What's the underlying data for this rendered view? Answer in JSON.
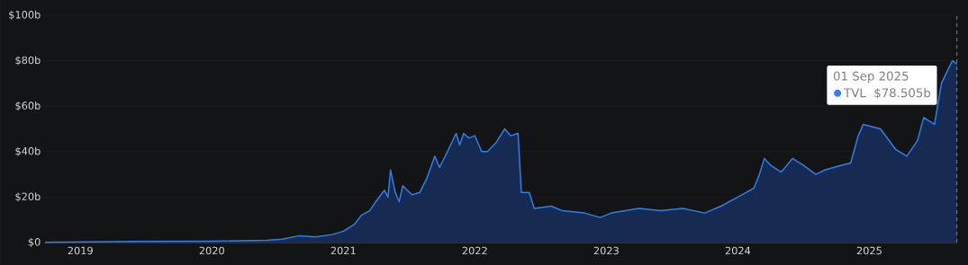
{
  "chart_data": {
    "type": "area",
    "xlim": [
      "2018-09-25",
      "2025-09-01"
    ],
    "ylim": [
      0,
      100
    ],
    "xticks": [
      {
        "value": "2019-01-01",
        "label": "2019"
      },
      {
        "value": "2020-01-01",
        "label": "2020"
      },
      {
        "value": "2021-01-01",
        "label": "2021"
      },
      {
        "value": "2022-01-01",
        "label": "2022"
      },
      {
        "value": "2023-01-01",
        "label": "2023"
      },
      {
        "value": "2024-01-01",
        "label": "2024"
      },
      {
        "value": "2025-01-01",
        "label": "2025"
      }
    ],
    "yticks": [
      {
        "value": 0,
        "label": "$0"
      },
      {
        "value": 20,
        "label": "$20b"
      },
      {
        "value": 40,
        "label": "$40b"
      },
      {
        "value": 60,
        "label": "$60b"
      },
      {
        "value": 80,
        "label": "$80b"
      },
      {
        "value": 100,
        "label": "$100b"
      }
    ],
    "grid": "y",
    "legend": "top right",
    "x": [
      "2018-09-25",
      "2019-06-01",
      "2020-01-01",
      "2020-06-01",
      "2020-07-15",
      "2020-09-01",
      "2020-10-15",
      "2020-12-01",
      "2021-01-01",
      "2021-02-01",
      "2021-02-20",
      "2021-03-15",
      "2021-04-01",
      "2021-04-25",
      "2021-05-05",
      "2021-05-12",
      "2021-05-25",
      "2021-06-05",
      "2021-06-15",
      "2021-07-10",
      "2021-08-01",
      "2021-08-20",
      "2021-09-05",
      "2021-09-12",
      "2021-09-25",
      "2021-10-20",
      "2021-11-10",
      "2021-11-20",
      "2021-12-01",
      "2021-12-15",
      "2022-01-01",
      "2022-01-20",
      "2022-02-05",
      "2022-03-01",
      "2022-03-25",
      "2022-04-10",
      "2022-05-01",
      "2022-05-10",
      "2022-06-01",
      "2022-06-15",
      "2022-08-01",
      "2022-09-01",
      "2022-11-01",
      "2022-12-15",
      "2023-01-15",
      "2023-04-01",
      "2023-06-01",
      "2023-08-01",
      "2023-10-01",
      "2023-11-15",
      "2024-01-01",
      "2024-02-15",
      "2024-03-01",
      "2024-03-15",
      "2024-04-01",
      "2024-05-01",
      "2024-06-01",
      "2024-07-01",
      "2024-08-05",
      "2024-09-01",
      "2024-10-15",
      "2024-11-10",
      "2024-12-01",
      "2024-12-15",
      "2025-02-01",
      "2025-03-15",
      "2025-04-15",
      "2025-05-15",
      "2025-06-01",
      "2025-07-01",
      "2025-07-20",
      "2025-08-10",
      "2025-08-20",
      "2025-09-01"
    ],
    "series": [
      {
        "name": "TVL",
        "color": "#2f7ff0",
        "values": [
          0.1,
          0.5,
          0.6,
          1,
          1.5,
          3,
          2.5,
          3.5,
          5,
          8,
          12,
          14,
          18,
          23,
          20,
          32,
          22,
          18,
          25,
          21,
          22,
          28,
          35,
          38,
          33,
          41,
          48,
          43,
          48,
          46,
          47,
          40,
          40,
          44,
          50,
          47,
          48,
          22,
          22,
          15,
          16,
          14,
          13,
          11,
          13,
          15,
          14,
          15,
          13,
          16,
          20,
          24,
          30,
          37,
          34,
          31,
          37,
          34,
          30,
          32,
          34,
          35,
          47,
          52,
          50,
          41,
          38,
          45,
          55,
          52,
          70,
          77,
          80,
          78.505
        ]
      }
    ],
    "ref_lines": [
      {
        "axis": "x",
        "value": "2025-09-01",
        "line_style": "dashed",
        "color": "#bbbbbb"
      }
    ],
    "annotations": [
      "01 Sep 2025",
      "$78.505b"
    ]
  }
}
